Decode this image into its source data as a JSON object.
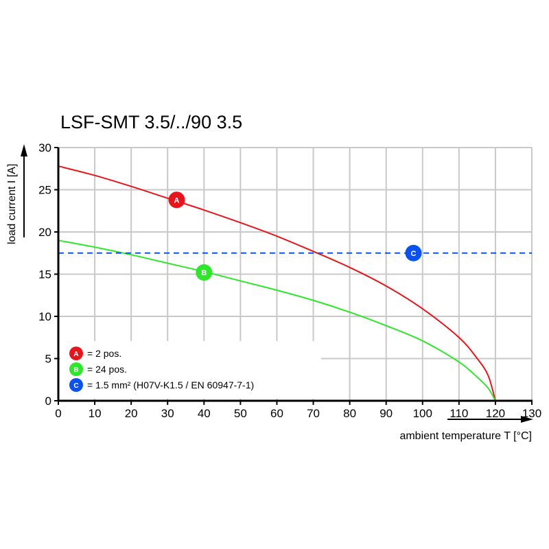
{
  "chart_data": {
    "type": "line",
    "title": "LSF-SMT 3.5/../90 3.5",
    "xlabel": "ambient temperature T [°C]",
    "ylabel": "load current I [A]",
    "xlim": [
      0,
      130
    ],
    "ylim": [
      0,
      30
    ],
    "xticks": [
      0,
      10,
      20,
      30,
      40,
      50,
      60,
      70,
      80,
      90,
      100,
      110,
      120,
      130
    ],
    "yticks": [
      0,
      5,
      10,
      15,
      20,
      25,
      30
    ],
    "grid": true,
    "legend_placement": "bottom-left",
    "series": [
      {
        "marker": "A",
        "color": "#e8141b",
        "x": [
          0,
          10,
          20,
          30,
          40,
          50,
          60,
          70,
          80,
          90,
          100,
          110,
          115,
          118,
          120
        ],
        "y": [
          27.8,
          26.7,
          25.4,
          24.0,
          22.6,
          21.1,
          19.5,
          17.7,
          15.8,
          13.6,
          10.9,
          7.5,
          5.0,
          3.0,
          0
        ],
        "marker_at": [
          32.5,
          23.8
        ]
      },
      {
        "marker": "B",
        "color": "#2ee62a",
        "x": [
          0,
          10,
          20,
          30,
          40,
          50,
          60,
          70,
          80,
          90,
          100,
          110,
          115,
          118,
          120
        ],
        "y": [
          19.0,
          18.2,
          17.3,
          16.3,
          15.3,
          14.2,
          13.1,
          11.9,
          10.5,
          8.9,
          7.1,
          4.6,
          2.8,
          1.5,
          0
        ],
        "marker_at": [
          40,
          15.2
        ]
      },
      {
        "marker": "C",
        "color": "#0a52f0",
        "style": "dashed",
        "x": [
          0,
          130
        ],
        "y": [
          17.5,
          17.5
        ],
        "marker_at": [
          97.5,
          17.5
        ]
      }
    ],
    "legend": [
      {
        "marker": "A",
        "color": "#e8141b",
        "text": "= 2 pos."
      },
      {
        "marker": "B",
        "color": "#2ee62a",
        "text": "= 24 pos."
      },
      {
        "marker": "C",
        "color": "#0a52f0",
        "text": "= 1.5 mm² (H07V-K1.5 / EN 60947-7-1)"
      }
    ]
  }
}
